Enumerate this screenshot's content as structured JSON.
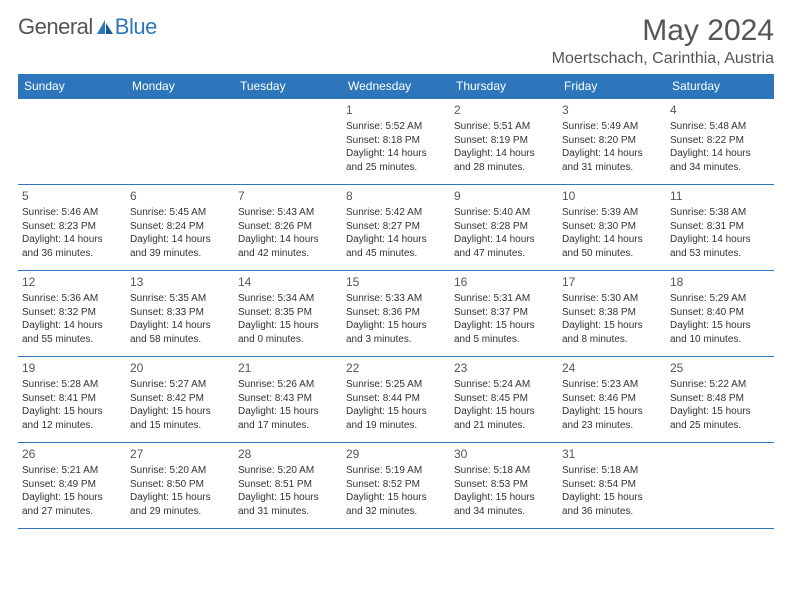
{
  "logo": {
    "text_left": "General",
    "text_right": "Blue"
  },
  "title": "May 2024",
  "location": "Moertschach, Carinthia, Austria",
  "colors": {
    "header_bg": "#2d76bb",
    "header_text": "#ffffff",
    "border": "#2d76bb",
    "body_text": "#333333",
    "title_text": "#555555",
    "background": "#ffffff"
  },
  "typography": {
    "title_fontsize": 30,
    "location_fontsize": 16,
    "dayheader_fontsize": 12,
    "daynum_fontsize": 12,
    "cell_fontsize": 10,
    "font_family": "Arial"
  },
  "calendar": {
    "columns": [
      "Sunday",
      "Monday",
      "Tuesday",
      "Wednesday",
      "Thursday",
      "Friday",
      "Saturday"
    ],
    "weeks": [
      [
        null,
        null,
        null,
        {
          "day": "1",
          "sunrise": "5:52 AM",
          "sunset": "8:18 PM",
          "daylight": "14 hours and 25 minutes."
        },
        {
          "day": "2",
          "sunrise": "5:51 AM",
          "sunset": "8:19 PM",
          "daylight": "14 hours and 28 minutes."
        },
        {
          "day": "3",
          "sunrise": "5:49 AM",
          "sunset": "8:20 PM",
          "daylight": "14 hours and 31 minutes."
        },
        {
          "day": "4",
          "sunrise": "5:48 AM",
          "sunset": "8:22 PM",
          "daylight": "14 hours and 34 minutes."
        }
      ],
      [
        {
          "day": "5",
          "sunrise": "5:46 AM",
          "sunset": "8:23 PM",
          "daylight": "14 hours and 36 minutes."
        },
        {
          "day": "6",
          "sunrise": "5:45 AM",
          "sunset": "8:24 PM",
          "daylight": "14 hours and 39 minutes."
        },
        {
          "day": "7",
          "sunrise": "5:43 AM",
          "sunset": "8:26 PM",
          "daylight": "14 hours and 42 minutes."
        },
        {
          "day": "8",
          "sunrise": "5:42 AM",
          "sunset": "8:27 PM",
          "daylight": "14 hours and 45 minutes."
        },
        {
          "day": "9",
          "sunrise": "5:40 AM",
          "sunset": "8:28 PM",
          "daylight": "14 hours and 47 minutes."
        },
        {
          "day": "10",
          "sunrise": "5:39 AM",
          "sunset": "8:30 PM",
          "daylight": "14 hours and 50 minutes."
        },
        {
          "day": "11",
          "sunrise": "5:38 AM",
          "sunset": "8:31 PM",
          "daylight": "14 hours and 53 minutes."
        }
      ],
      [
        {
          "day": "12",
          "sunrise": "5:36 AM",
          "sunset": "8:32 PM",
          "daylight": "14 hours and 55 minutes."
        },
        {
          "day": "13",
          "sunrise": "5:35 AM",
          "sunset": "8:33 PM",
          "daylight": "14 hours and 58 minutes."
        },
        {
          "day": "14",
          "sunrise": "5:34 AM",
          "sunset": "8:35 PM",
          "daylight": "15 hours and 0 minutes."
        },
        {
          "day": "15",
          "sunrise": "5:33 AM",
          "sunset": "8:36 PM",
          "daylight": "15 hours and 3 minutes."
        },
        {
          "day": "16",
          "sunrise": "5:31 AM",
          "sunset": "8:37 PM",
          "daylight": "15 hours and 5 minutes."
        },
        {
          "day": "17",
          "sunrise": "5:30 AM",
          "sunset": "8:38 PM",
          "daylight": "15 hours and 8 minutes."
        },
        {
          "day": "18",
          "sunrise": "5:29 AM",
          "sunset": "8:40 PM",
          "daylight": "15 hours and 10 minutes."
        }
      ],
      [
        {
          "day": "19",
          "sunrise": "5:28 AM",
          "sunset": "8:41 PM",
          "daylight": "15 hours and 12 minutes."
        },
        {
          "day": "20",
          "sunrise": "5:27 AM",
          "sunset": "8:42 PM",
          "daylight": "15 hours and 15 minutes."
        },
        {
          "day": "21",
          "sunrise": "5:26 AM",
          "sunset": "8:43 PM",
          "daylight": "15 hours and 17 minutes."
        },
        {
          "day": "22",
          "sunrise": "5:25 AM",
          "sunset": "8:44 PM",
          "daylight": "15 hours and 19 minutes."
        },
        {
          "day": "23",
          "sunrise": "5:24 AM",
          "sunset": "8:45 PM",
          "daylight": "15 hours and 21 minutes."
        },
        {
          "day": "24",
          "sunrise": "5:23 AM",
          "sunset": "8:46 PM",
          "daylight": "15 hours and 23 minutes."
        },
        {
          "day": "25",
          "sunrise": "5:22 AM",
          "sunset": "8:48 PM",
          "daylight": "15 hours and 25 minutes."
        }
      ],
      [
        {
          "day": "26",
          "sunrise": "5:21 AM",
          "sunset": "8:49 PM",
          "daylight": "15 hours and 27 minutes."
        },
        {
          "day": "27",
          "sunrise": "5:20 AM",
          "sunset": "8:50 PM",
          "daylight": "15 hours and 29 minutes."
        },
        {
          "day": "28",
          "sunrise": "5:20 AM",
          "sunset": "8:51 PM",
          "daylight": "15 hours and 31 minutes."
        },
        {
          "day": "29",
          "sunrise": "5:19 AM",
          "sunset": "8:52 PM",
          "daylight": "15 hours and 32 minutes."
        },
        {
          "day": "30",
          "sunrise": "5:18 AM",
          "sunset": "8:53 PM",
          "daylight": "15 hours and 34 minutes."
        },
        {
          "day": "31",
          "sunrise": "5:18 AM",
          "sunset": "8:54 PM",
          "daylight": "15 hours and 36 minutes."
        },
        null
      ]
    ],
    "labels": {
      "sunrise": "Sunrise:",
      "sunset": "Sunset:",
      "daylight": "Daylight:"
    }
  }
}
